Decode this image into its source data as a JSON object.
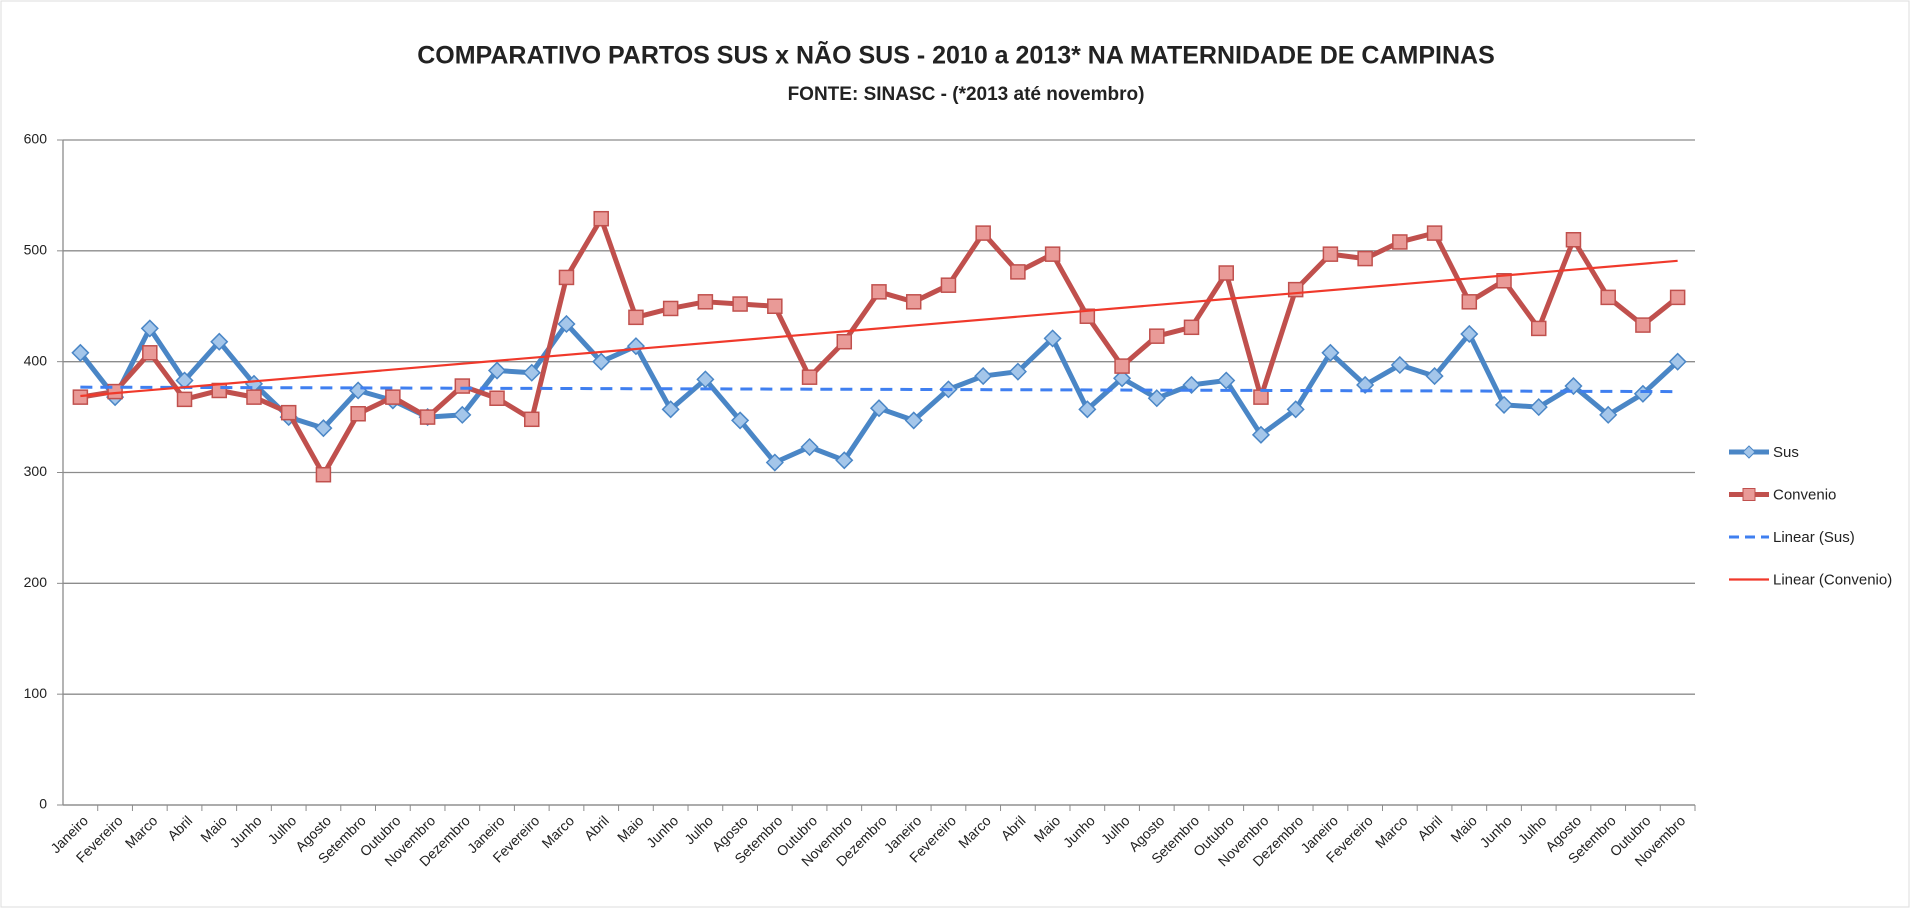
{
  "chart_data": {
    "type": "line",
    "title": "COMPARATIVO PARTOS SUS x NÃO SUS - 2010 a 2013* NA MATERNIDADE DE CAMPINAS",
    "subtitle": "FONTE: SINASC - (*2013 até novembro)",
    "categories": [
      "Janeiro",
      "Fevereiro",
      "Marco",
      "Abril",
      "Maio",
      "Junho",
      "Julho",
      "Agosto",
      "Setembro",
      "Outubro",
      "Novembro",
      "Dezembro",
      "Janeiro",
      "Fevereiro",
      "Marco",
      "Abril",
      "Maio",
      "Junho",
      "Julho",
      "Agosto",
      "Setembro",
      "Outubro",
      "Novembro",
      "Dezembro",
      "Janeiro",
      "Fevereiro",
      "Marco",
      "Abril",
      "Maio",
      "Junho",
      "Julho",
      "Agosto",
      "Setembro",
      "Outubro",
      "Novembro",
      "Dezembro",
      "Janeiro",
      "Fevereiro",
      "Marco",
      "Abril",
      "Maio",
      "Junho",
      "Julho",
      "Agosto",
      "Setembro",
      "Outubro",
      "Novembro"
    ],
    "series": [
      {
        "name": "Sus",
        "color": "#4a86c6",
        "marker": "diamond",
        "marker_color": "#a4c6ea",
        "values": [
          408,
          368,
          430,
          383,
          418,
          380,
          350,
          340,
          374,
          365,
          350,
          352,
          392,
          390,
          434,
          400,
          414,
          357,
          384,
          347,
          309,
          323,
          311,
          358,
          347,
          375,
          387,
          391,
          421,
          357,
          385,
          367,
          379,
          383,
          334,
          357,
          408,
          379,
          397,
          387,
          425,
          361,
          359,
          378,
          352,
          371,
          400
        ]
      },
      {
        "name": "Convenio",
        "color": "#c0504d",
        "marker": "square",
        "marker_color": "#e99a97",
        "values": [
          368,
          373,
          408,
          366,
          374,
          368,
          354,
          298,
          353,
          368,
          350,
          378,
          367,
          348,
          476,
          529,
          440,
          448,
          454,
          452,
          450,
          386,
          418,
          463,
          454,
          469,
          516,
          481,
          497,
          441,
          396,
          423,
          431,
          480,
          368,
          465,
          497,
          493,
          508,
          516,
          454,
          473,
          430,
          510,
          458,
          433,
          458
        ]
      }
    ],
    "trendlines": [
      {
        "name": "Linear (Sus)",
        "color": "#3f7ff0",
        "dashed": true,
        "start": 377,
        "end": 373
      },
      {
        "name": "Linear (Convenio)",
        "color": "#f0392b",
        "dashed": false,
        "start": 369,
        "end": 491
      }
    ],
    "ylim": [
      0,
      600
    ],
    "yticks": [
      0,
      100,
      200,
      300,
      400,
      500,
      600
    ],
    "grid": true,
    "legend": "right"
  }
}
